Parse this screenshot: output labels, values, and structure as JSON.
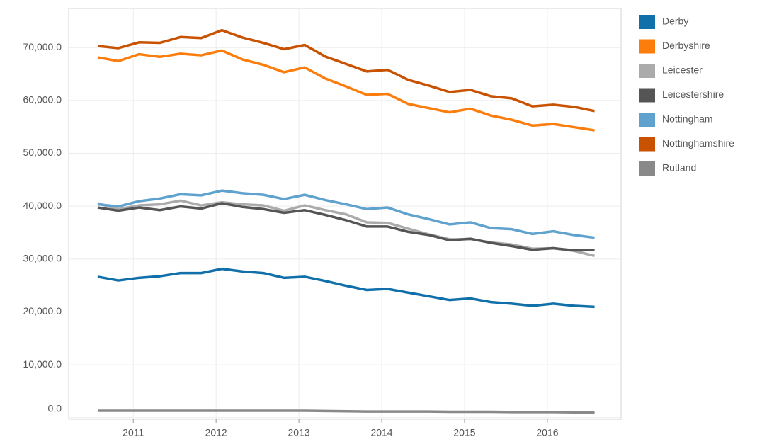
{
  "chart_data": {
    "type": "line",
    "x": [
      2010.57,
      2010.82,
      2011.07,
      2011.32,
      2011.57,
      2011.82,
      2012.07,
      2012.32,
      2012.57,
      2012.82,
      2013.07,
      2013.32,
      2013.57,
      2013.82,
      2014.07,
      2014.32,
      2014.57,
      2014.82,
      2015.07,
      2015.32,
      2015.57,
      2015.82,
      2016.07,
      2016.32,
      2016.57
    ],
    "series": [
      {
        "name": "Derby",
        "color": "#1170aa",
        "values": [
          26650,
          25950,
          26450,
          26750,
          27350,
          27350,
          28150,
          27650,
          27350,
          26450,
          26650,
          25850,
          24950,
          24150,
          24350,
          23650,
          22950,
          22250,
          22550,
          21850,
          21550,
          21150,
          21550,
          21150,
          20950
        ]
      },
      {
        "name": "Derbyshire",
        "color": "#fc7d0b",
        "values": [
          68150,
          67450,
          68750,
          68250,
          68850,
          68550,
          69450,
          67750,
          66750,
          65350,
          66250,
          64150,
          62650,
          61050,
          61250,
          59350,
          58550,
          57750,
          58450,
          57150,
          56350,
          55250,
          55550,
          54950,
          54350
        ]
      },
      {
        "name": "Leicester",
        "color": "#ababab",
        "values": [
          40550,
          39450,
          40150,
          40350,
          41050,
          40150,
          40750,
          40350,
          40150,
          39150,
          40150,
          39250,
          38450,
          36950,
          36850,
          35750,
          34650,
          33750,
          33750,
          33150,
          32750,
          31950,
          32050,
          31550,
          30600
        ]
      },
      {
        "name": "Leicestershire",
        "color": "#555555",
        "values": [
          39750,
          39150,
          39750,
          39250,
          39950,
          39550,
          40550,
          39850,
          39450,
          38750,
          39250,
          38350,
          37350,
          36150,
          36150,
          35150,
          34550,
          33550,
          33850,
          33050,
          32450,
          31750,
          32050,
          31650,
          31700
        ]
      },
      {
        "name": "Nottingham",
        "color": "#5fa2ce",
        "values": [
          40350,
          39950,
          40950,
          41450,
          42250,
          42050,
          42950,
          42450,
          42150,
          41350,
          42150,
          41150,
          40350,
          39450,
          39750,
          38450,
          37550,
          36550,
          36950,
          35850,
          35650,
          34750,
          35250,
          34550,
          34050
        ]
      },
      {
        "name": "Nottinghamshire",
        "color": "#c85200",
        "values": [
          70300,
          69900,
          71000,
          70900,
          72000,
          71800,
          73300,
          71900,
          70900,
          69700,
          70500,
          68300,
          66900,
          65500,
          65800,
          63900,
          62800,
          61600,
          62000,
          60800,
          60400,
          58900,
          59200,
          58800,
          58000
        ]
      },
      {
        "name": "Rutland",
        "color": "#898989",
        "values": [
          1300,
          1300,
          1300,
          1300,
          1300,
          1300,
          1300,
          1300,
          1300,
          1300,
          1300,
          1250,
          1200,
          1150,
          1150,
          1150,
          1150,
          1100,
          1100,
          1100,
          1050,
          1050,
          1050,
          1000,
          1000
        ]
      }
    ],
    "xlim": [
      2010.22,
      2016.89
    ],
    "xticks": [
      2011,
      2012,
      2013,
      2014,
      2015,
      2016
    ],
    "ylim": [
      -300,
      77400
    ],
    "yticks": [
      {
        "value": 0,
        "label": "0.0"
      },
      {
        "value": 10000,
        "label": "10,000.0"
      },
      {
        "value": 20000,
        "label": "20,000.0"
      },
      {
        "value": 30000,
        "label": "30,000.0"
      },
      {
        "value": 40000,
        "label": "40,000.0"
      },
      {
        "value": 50000,
        "label": "50,000.0"
      },
      {
        "value": 60000,
        "label": "60,000.0"
      },
      {
        "value": 70000,
        "label": "70,000.0"
      }
    ],
    "grid": true,
    "legend": "right"
  }
}
